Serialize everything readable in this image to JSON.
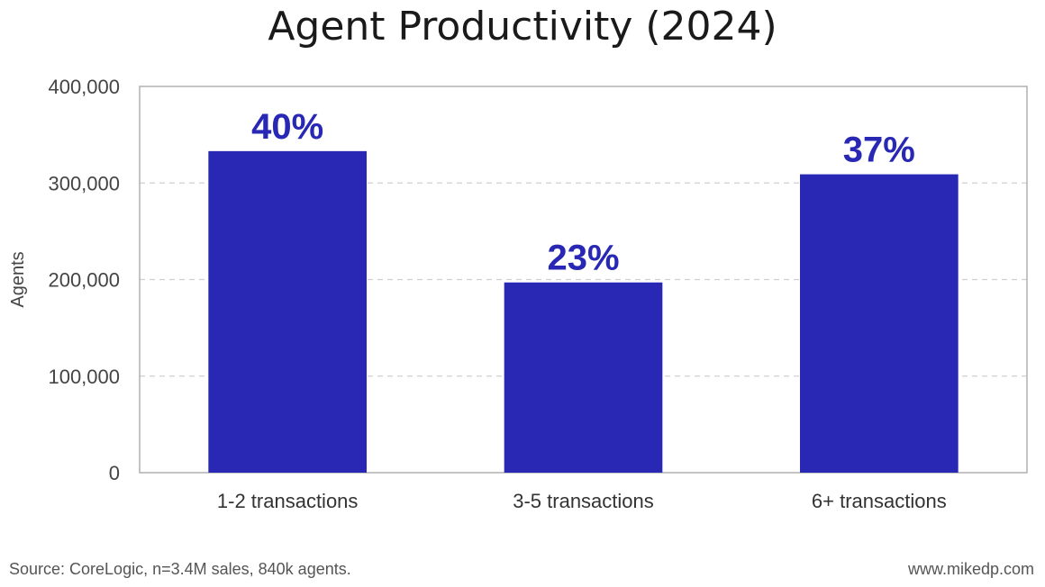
{
  "chart_data": {
    "type": "bar",
    "title": "Agent Productivity (2024)",
    "xlabel": "",
    "ylabel": "Agents",
    "categories": [
      "1-2 transactions",
      "3-5 transactions",
      "6+ transactions"
    ],
    "values": [
      333000,
      197000,
      309000
    ],
    "data_labels": [
      "40%",
      "23%",
      "37%"
    ],
    "ylim": [
      0,
      400000
    ],
    "yticks": [
      0,
      100000,
      200000,
      300000,
      400000
    ],
    "ytick_labels": [
      "0",
      "100,000",
      "200,000",
      "300,000",
      "400,000"
    ],
    "grid": true,
    "legend": "none"
  },
  "colors": {
    "bar": "#2828b4",
    "label": "#2828b4",
    "grid": "#d0d0d0",
    "axis": "#b0b0b0",
    "text": "#444444"
  },
  "footer": {
    "source": "Source: CoreLogic, n=3.4M sales, 840k agents.",
    "site": "www.mikedp.com"
  }
}
